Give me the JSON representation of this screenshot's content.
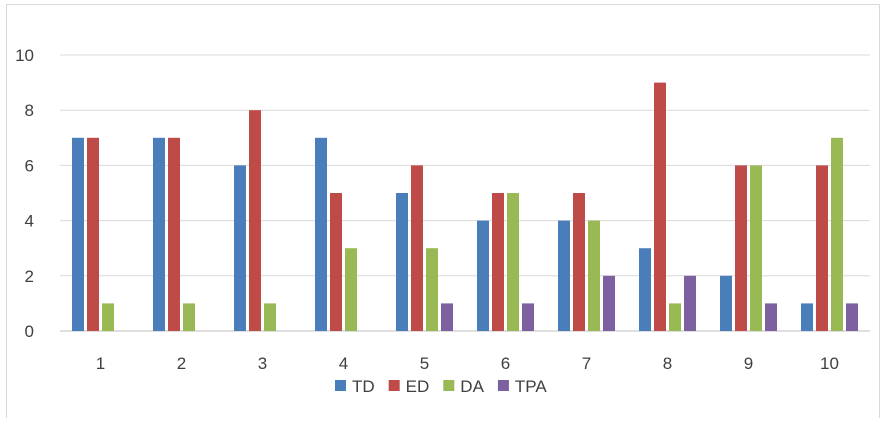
{
  "chart_data": {
    "type": "bar",
    "title": "",
    "xlabel": "",
    "ylabel": "",
    "categories": [
      "1",
      "2",
      "3",
      "4",
      "5",
      "6",
      "7",
      "8",
      "9",
      "10"
    ],
    "ylim": [
      0,
      10
    ],
    "yticks": [
      0,
      2,
      4,
      6,
      8,
      10
    ],
    "grid": true,
    "legend": "bottom",
    "series": [
      {
        "name": "TD",
        "color": "#4a7ebb",
        "values": [
          7,
          7,
          6,
          7,
          5,
          4,
          4,
          3,
          2,
          1
        ]
      },
      {
        "name": "ED",
        "color": "#be4b48",
        "values": [
          7,
          7,
          8,
          5,
          6,
          5,
          5,
          9,
          6,
          6
        ]
      },
      {
        "name": "DA",
        "color": "#98b954",
        "values": [
          1,
          1,
          1,
          3,
          3,
          5,
          4,
          1,
          6,
          7
        ]
      },
      {
        "name": "TPA",
        "color": "#7d60a0",
        "values": [
          0,
          0,
          0,
          0,
          1,
          1,
          2,
          2,
          1,
          1
        ]
      }
    ]
  }
}
